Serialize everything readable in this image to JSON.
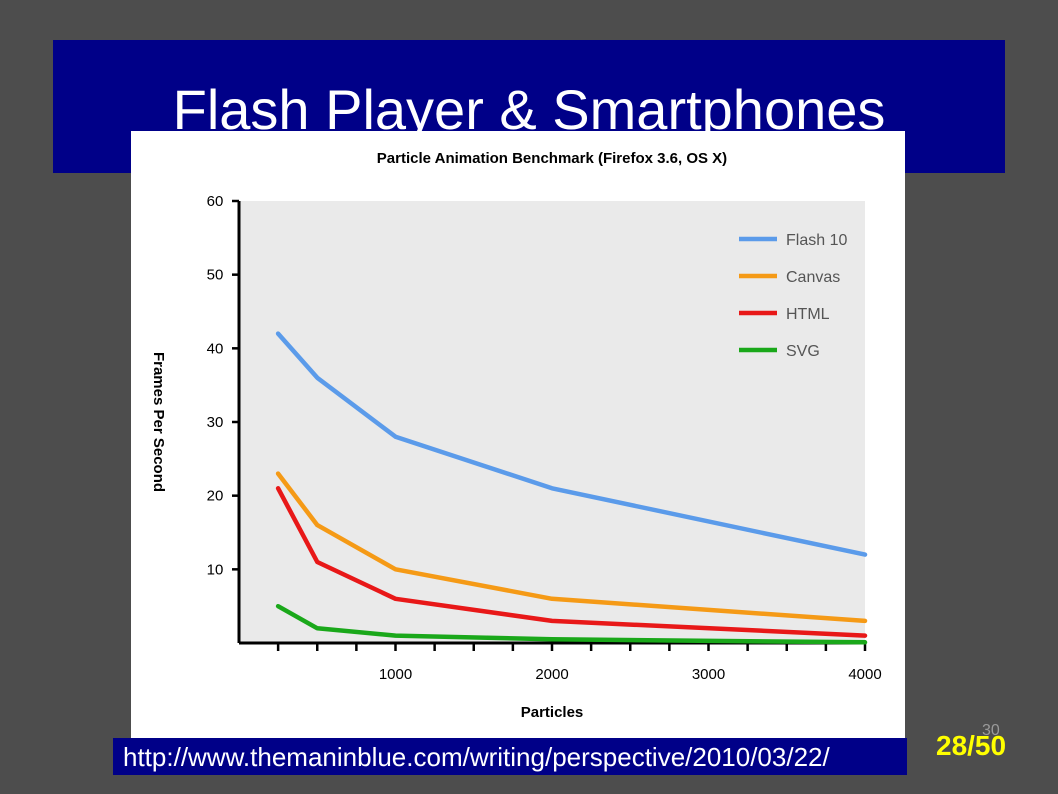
{
  "slide": {
    "title": "Flash Player & Smartphones",
    "url": "http://www.themaninblue.com/writing/perspective/2010/03/22/",
    "page_counter": "28/50",
    "ghost_number": "30"
  },
  "colors": {
    "background": "#4d4d4d",
    "banner": "#000088",
    "page_counter": "#ffff00",
    "plot_area": "#eaeaea"
  },
  "chart_data": {
    "type": "line",
    "title": "Particle Animation Benchmark (Firefox 3.6, OS X)",
    "xlabel": "Particles",
    "ylabel": "Frames Per Second",
    "xlim": [
      0,
      4000
    ],
    "ylim": [
      0,
      60
    ],
    "x_ticks": [
      1000,
      2000,
      3000,
      4000
    ],
    "y_ticks": [
      10,
      20,
      30,
      40,
      50,
      60
    ],
    "x_minor_step": 250,
    "grid": false,
    "legend_position": "top-right",
    "x": [
      250,
      500,
      1000,
      2000,
      4000
    ],
    "series": [
      {
        "name": "Flash 10",
        "color": "#5b9bea",
        "values": [
          42,
          36,
          28,
          21,
          12
        ]
      },
      {
        "name": "Canvas",
        "color": "#f59a16",
        "values": [
          23,
          16,
          10,
          6,
          3
        ]
      },
      {
        "name": "HTML",
        "color": "#e81818",
        "values": [
          21,
          11,
          6,
          3,
          1
        ]
      },
      {
        "name": "SVG",
        "color": "#1aa81a",
        "values": [
          5,
          2,
          1,
          0.5,
          0.1
        ]
      }
    ]
  }
}
